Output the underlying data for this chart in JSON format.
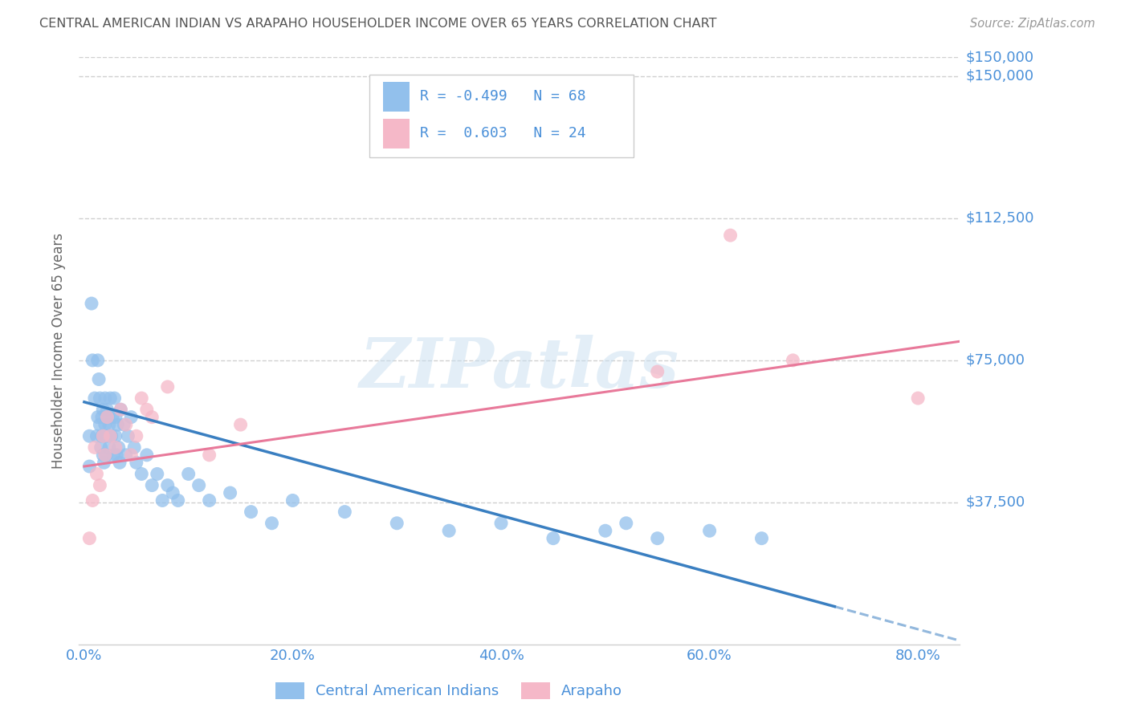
{
  "title": "CENTRAL AMERICAN INDIAN VS ARAPAHO HOUSEHOLDER INCOME OVER 65 YEARS CORRELATION CHART",
  "source": "Source: ZipAtlas.com",
  "ylabel": "Householder Income Over 65 years",
  "xlabel_ticks": [
    "0.0%",
    "",
    "",
    "",
    "",
    "20.0%",
    "",
    "",
    "",
    "",
    "40.0%",
    "",
    "",
    "",
    "",
    "60.0%",
    "",
    "",
    "",
    "",
    "80.0%"
  ],
  "ytick_labels": [
    "$37,500",
    "$75,000",
    "$112,500",
    "$150,000"
  ],
  "ytick_values": [
    37500,
    75000,
    112500,
    150000
  ],
  "ylim": [
    0,
    155000
  ],
  "xlim": [
    -0.005,
    0.84
  ],
  "watermark": "ZIPatlas",
  "blue_color": "#92c0ec",
  "pink_color": "#f5b8c8",
  "blue_line_color": "#3a7fc1",
  "pink_line_color": "#e8799a",
  "title_color": "#555555",
  "source_color": "#999999",
  "axis_label_color": "#4a90d9",
  "ylabel_color": "#666666",
  "blue_scatter_x": [
    0.005,
    0.005,
    0.007,
    0.008,
    0.01,
    0.012,
    0.013,
    0.013,
    0.014,
    0.015,
    0.015,
    0.016,
    0.017,
    0.017,
    0.018,
    0.018,
    0.019,
    0.02,
    0.02,
    0.021,
    0.021,
    0.022,
    0.023,
    0.024,
    0.024,
    0.025,
    0.026,
    0.027,
    0.028,
    0.029,
    0.03,
    0.03,
    0.031,
    0.032,
    0.033,
    0.034,
    0.035,
    0.038,
    0.04,
    0.042,
    0.045,
    0.048,
    0.05,
    0.055,
    0.06,
    0.065,
    0.07,
    0.075,
    0.08,
    0.085,
    0.09,
    0.1,
    0.11,
    0.12,
    0.14,
    0.16,
    0.18,
    0.2,
    0.25,
    0.3,
    0.35,
    0.4,
    0.45,
    0.5,
    0.52,
    0.55,
    0.6,
    0.65
  ],
  "blue_scatter_y": [
    55000,
    47000,
    90000,
    75000,
    65000,
    55000,
    75000,
    60000,
    70000,
    65000,
    58000,
    52000,
    60000,
    55000,
    50000,
    62000,
    48000,
    65000,
    58000,
    55000,
    50000,
    62000,
    60000,
    58000,
    52000,
    65000,
    55000,
    60000,
    50000,
    65000,
    60000,
    55000,
    50000,
    58000,
    52000,
    48000,
    62000,
    58000,
    50000,
    55000,
    60000,
    52000,
    48000,
    45000,
    50000,
    42000,
    45000,
    38000,
    42000,
    40000,
    38000,
    45000,
    42000,
    38000,
    40000,
    35000,
    32000,
    38000,
    35000,
    32000,
    30000,
    32000,
    28000,
    30000,
    32000,
    28000,
    30000,
    28000
  ],
  "pink_scatter_x": [
    0.005,
    0.008,
    0.01,
    0.012,
    0.015,
    0.018,
    0.02,
    0.022,
    0.025,
    0.03,
    0.035,
    0.04,
    0.045,
    0.05,
    0.055,
    0.06,
    0.065,
    0.08,
    0.12,
    0.15,
    0.55,
    0.62,
    0.68,
    0.8
  ],
  "pink_scatter_y": [
    28000,
    38000,
    52000,
    45000,
    42000,
    55000,
    50000,
    60000,
    55000,
    52000,
    62000,
    58000,
    50000,
    55000,
    65000,
    62000,
    60000,
    68000,
    50000,
    58000,
    72000,
    108000,
    75000,
    65000
  ],
  "blue_regline_x": [
    0.0,
    0.72
  ],
  "blue_regline_y": [
    64000,
    10000
  ],
  "blue_dashline_x": [
    0.72,
    0.84
  ],
  "blue_dashline_y": [
    10000,
    1000
  ],
  "pink_regline_x": [
    0.0,
    0.84
  ],
  "pink_regline_y": [
    47000,
    80000
  ]
}
